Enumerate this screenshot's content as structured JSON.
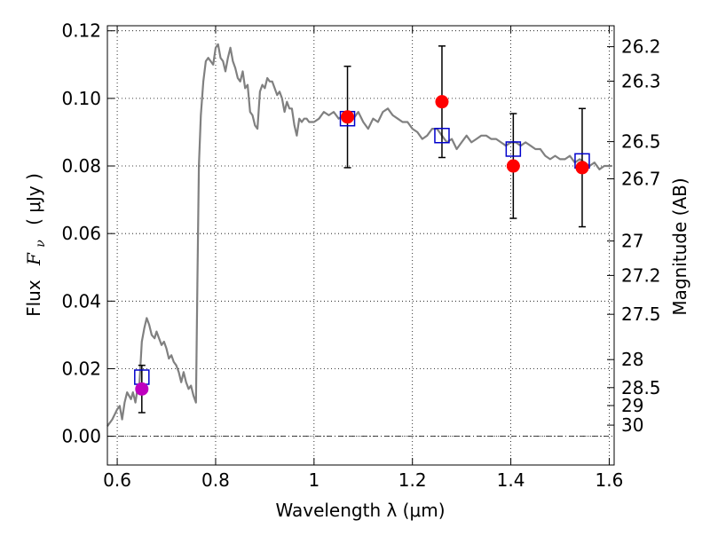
{
  "chart_data": {
    "type": "scatter",
    "xlabel": "Wavelength  λ (μm)",
    "ylabel": "Flux  Fν  ( μJy )",
    "ylabel_parts": [
      "Flux",
      "F",
      "ν",
      "( μJy )"
    ],
    "y2label": "Magnitude (AB)",
    "xlim": [
      0.58,
      1.61
    ],
    "ylim": [
      -0.0085,
      0.1215
    ],
    "grid": true,
    "xticks": [
      0.6,
      0.8,
      1.0,
      1.2,
      1.4,
      1.6
    ],
    "xtick_labels": [
      "0.6",
      "0.8",
      "1",
      "1.2",
      "1.4",
      "1.6"
    ],
    "yticks": [
      0.0,
      0.02,
      0.04,
      0.06,
      0.08,
      0.1,
      0.12
    ],
    "ytick_labels": [
      "0.00",
      "0.02",
      "0.04",
      "0.06",
      "0.08",
      "0.10",
      "0.12"
    ],
    "y2ticks": [
      {
        "label": "26.2",
        "flux": 0.1153
      },
      {
        "label": "26.3",
        "flux": 0.1051
      },
      {
        "label": "26.5",
        "flux": 0.0872
      },
      {
        "label": "26.7",
        "flux": 0.0762
      },
      {
        "label": "27",
        "flux": 0.0578
      },
      {
        "label": "27.2",
        "flux": 0.0476
      },
      {
        "label": "27.5",
        "flux": 0.0361
      },
      {
        "label": "28",
        "flux": 0.0227
      },
      {
        "label": "28.5",
        "flux": 0.0144
      },
      {
        "label": "29",
        "flux": 0.0091
      },
      {
        "label": "30",
        "flux": 0.0033
      }
    ],
    "model_spectrum": {
      "color": "#808080",
      "x": [
        0.58,
        0.59,
        0.6,
        0.605,
        0.61,
        0.615,
        0.62,
        0.628,
        0.632,
        0.637,
        0.64,
        0.645,
        0.65,
        0.655,
        0.66,
        0.665,
        0.67,
        0.676,
        0.68,
        0.685,
        0.69,
        0.695,
        0.7,
        0.705,
        0.71,
        0.715,
        0.72,
        0.725,
        0.73,
        0.735,
        0.74,
        0.745,
        0.75,
        0.755,
        0.76,
        0.763,
        0.766,
        0.77,
        0.775,
        0.78,
        0.785,
        0.79,
        0.795,
        0.8,
        0.805,
        0.81,
        0.815,
        0.82,
        0.825,
        0.83,
        0.835,
        0.84,
        0.845,
        0.85,
        0.855,
        0.86,
        0.865,
        0.87,
        0.875,
        0.88,
        0.885,
        0.89,
        0.895,
        0.9,
        0.905,
        0.91,
        0.915,
        0.92,
        0.925,
        0.93,
        0.935,
        0.94,
        0.945,
        0.95,
        0.955,
        0.96,
        0.965,
        0.97,
        0.975,
        0.98,
        0.985,
        0.99,
        0.995,
        1.0,
        1.01,
        1.02,
        1.03,
        1.04,
        1.05,
        1.06,
        1.07,
        1.08,
        1.09,
        1.1,
        1.11,
        1.12,
        1.13,
        1.14,
        1.15,
        1.16,
        1.17,
        1.18,
        1.19,
        1.2,
        1.21,
        1.22,
        1.23,
        1.24,
        1.25,
        1.26,
        1.27,
        1.28,
        1.29,
        1.3,
        1.31,
        1.32,
        1.33,
        1.34,
        1.35,
        1.36,
        1.37,
        1.38,
        1.39,
        1.4,
        1.41,
        1.42,
        1.43,
        1.44,
        1.45,
        1.46,
        1.47,
        1.48,
        1.49,
        1.5,
        1.51,
        1.52,
        1.53,
        1.54,
        1.55,
        1.56,
        1.57,
        1.58,
        1.59,
        1.6,
        1.605
      ],
      "y": [
        0.003,
        0.005,
        0.008,
        0.009,
        0.005,
        0.01,
        0.013,
        0.011,
        0.013,
        0.01,
        0.013,
        0.015,
        0.028,
        0.032,
        0.035,
        0.033,
        0.03,
        0.029,
        0.031,
        0.029,
        0.027,
        0.028,
        0.026,
        0.023,
        0.024,
        0.022,
        0.021,
        0.019,
        0.016,
        0.019,
        0.016,
        0.014,
        0.015,
        0.012,
        0.01,
        0.045,
        0.08,
        0.095,
        0.105,
        0.111,
        0.112,
        0.111,
        0.11,
        0.115,
        0.116,
        0.112,
        0.111,
        0.108,
        0.112,
        0.115,
        0.111,
        0.109,
        0.106,
        0.105,
        0.108,
        0.103,
        0.104,
        0.096,
        0.095,
        0.092,
        0.091,
        0.102,
        0.104,
        0.103,
        0.106,
        0.105,
        0.105,
        0.103,
        0.101,
        0.102,
        0.1,
        0.096,
        0.099,
        0.097,
        0.097,
        0.092,
        0.089,
        0.094,
        0.093,
        0.094,
        0.094,
        0.093,
        0.093,
        0.093,
        0.094,
        0.096,
        0.095,
        0.096,
        0.094,
        0.095,
        0.093,
        0.094,
        0.096,
        0.093,
        0.091,
        0.094,
        0.093,
        0.096,
        0.097,
        0.095,
        0.094,
        0.093,
        0.093,
        0.091,
        0.09,
        0.088,
        0.089,
        0.091,
        0.091,
        0.089,
        0.087,
        0.088,
        0.085,
        0.087,
        0.089,
        0.087,
        0.088,
        0.089,
        0.089,
        0.088,
        0.088,
        0.087,
        0.086,
        0.087,
        0.087,
        0.086,
        0.087,
        0.086,
        0.085,
        0.085,
        0.083,
        0.082,
        0.083,
        0.082,
        0.082,
        0.083,
        0.081,
        0.082,
        0.081,
        0.08,
        0.081,
        0.079,
        0.08,
        0.08,
        0.08
      ]
    },
    "observed_points": [
      {
        "x": 0.65,
        "y": 0.014,
        "yerr": 0.007,
        "color": "#bf00bf"
      },
      {
        "x": 1.068,
        "y": 0.0945,
        "yerr": 0.015,
        "color": "#ff0000"
      },
      {
        "x": 1.26,
        "y": 0.099,
        "yerr": 0.0165,
        "color": "#ff0000"
      },
      {
        "x": 1.405,
        "y": 0.08,
        "yerr": 0.0155,
        "color": "#ff0000"
      },
      {
        "x": 1.545,
        "y": 0.0795,
        "yerr": 0.0175,
        "color": "#ff0000"
      }
    ],
    "model_photometry": {
      "color": "#0000cc",
      "points": [
        {
          "x": 0.65,
          "y": 0.0175
        },
        {
          "x": 1.068,
          "y": 0.094
        },
        {
          "x": 1.26,
          "y": 0.089
        },
        {
          "x": 1.405,
          "y": 0.085
        },
        {
          "x": 1.545,
          "y": 0.0815
        }
      ]
    }
  }
}
